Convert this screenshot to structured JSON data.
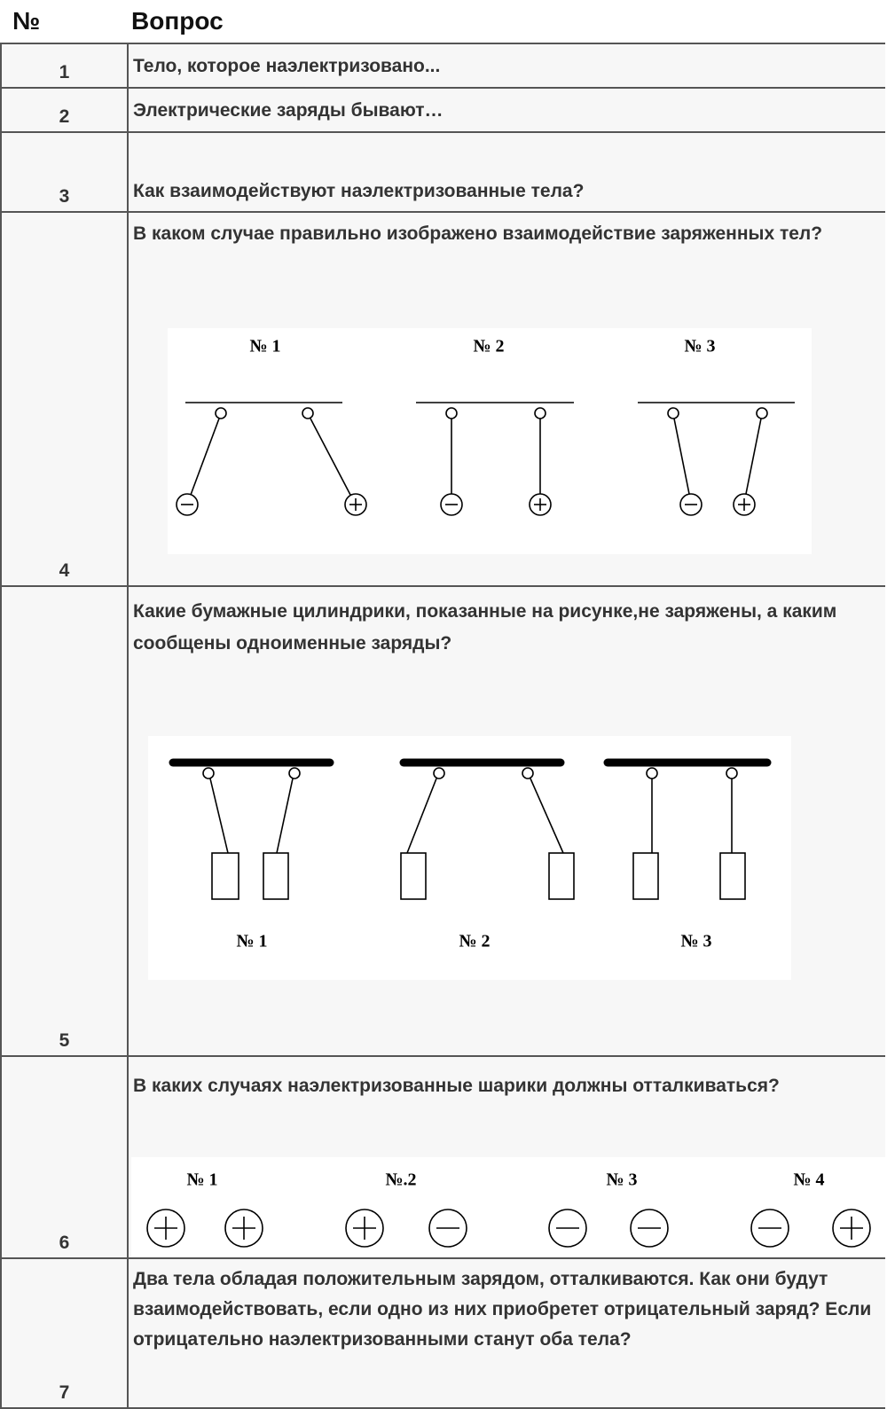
{
  "table": {
    "header": [
      "№",
      "Вопрос"
    ],
    "rows": [
      {
        "number": "1",
        "question": "Тело, которое наэлектризовано..."
      },
      {
        "number": "2",
        "question": "Электрические заряды бывают…"
      },
      {
        "number": "3",
        "question": "Как взаимодействуют наэлектризованные тела?"
      },
      {
        "number": "4",
        "question": "В каком случае правильно изображено взаимодействие заряженных тел?",
        "figure_labels": [
          "№ 1",
          "№ 2",
          "№ 3"
        ]
      },
      {
        "number": "5",
        "question": "Какие бумажные цилиндрики, показанные на рисунке,не заряжены, а каким сообщены одноименные заряды?",
        "figure_labels": [
          "№ 1",
          "№ 2",
          "№ 3"
        ]
      },
      {
        "number": "6",
        "question": "В каких случаях наэлектризованные шарики должны отталкиваться?",
        "figure_labels": [
          "№ 1",
          "№.2",
          "№ 3",
          "№ 4"
        ]
      },
      {
        "number": "7",
        "question": "Два тела обладая положительным зарядом, отталкиваются. Как они будут взаимодействовать, если одно из них приобретет отрицательный заряд? Если отрицательно наэлектризованными станут оба тела?"
      }
    ]
  }
}
